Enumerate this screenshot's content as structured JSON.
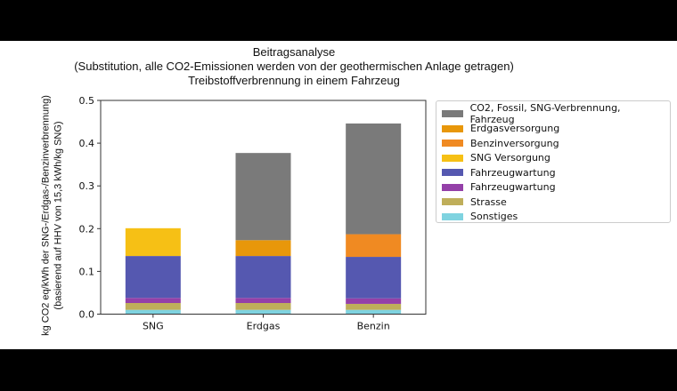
{
  "chart_data": {
    "type": "bar",
    "stacked": true,
    "title": [
      "Beitragsanalyse",
      "(Substitution, alle CO2-Emissionen werden von der geothermischen Anlage getragen)",
      "Treibstoffverbrennung  in einem Fahrzeug"
    ],
    "ylabel": [
      "kg CO2 eq/kWh der SNG-/Erdgas-/Benzinverbrennung)",
      "(basierend auf HHV von 15,3 kWh/kg SNG)"
    ],
    "xlabel": "",
    "categories": [
      "SNG",
      "Erdgas",
      "Benzin"
    ],
    "ylim": [
      0,
      0.5
    ],
    "yticks": [
      "0.0",
      "0.1",
      "0.2",
      "0.3",
      "0.4",
      "0.5"
    ],
    "grid": false,
    "legend_position": "right",
    "series": [
      {
        "name": "Sonstiges",
        "color": "#7fd3e0",
        "values": [
          0.01,
          0.01,
          0.01
        ]
      },
      {
        "name": "Strasse",
        "color": "#bfae5a",
        "values": [
          0.016,
          0.016,
          0.014
        ]
      },
      {
        "name": "Fahrzeugwartung",
        "color": "#9440a8",
        "values": [
          0.012,
          0.012,
          0.013
        ]
      },
      {
        "name": "Fahrzeugwartung",
        "color": "#5558b0",
        "values": [
          0.098,
          0.098,
          0.097
        ]
      },
      {
        "name": "SNG Versorgung",
        "color": "#f6c015",
        "values": [
          0.065,
          0,
          0
        ]
      },
      {
        "name": "Benzinversorgung",
        "color": "#f08a22",
        "values": [
          0,
          0,
          0.053
        ]
      },
      {
        "name": "Erdgasversorgung",
        "color": "#e8970a",
        "values": [
          0,
          0.037,
          0
        ]
      },
      {
        "name": "CO2, Fossil, SNG-Verbrennung, Fahrzeug",
        "color": "#7a7a7a",
        "values": [
          0,
          0.204,
          0.259
        ]
      }
    ],
    "legend_order": [
      7,
      6,
      5,
      4,
      3,
      2,
      1,
      0
    ]
  }
}
